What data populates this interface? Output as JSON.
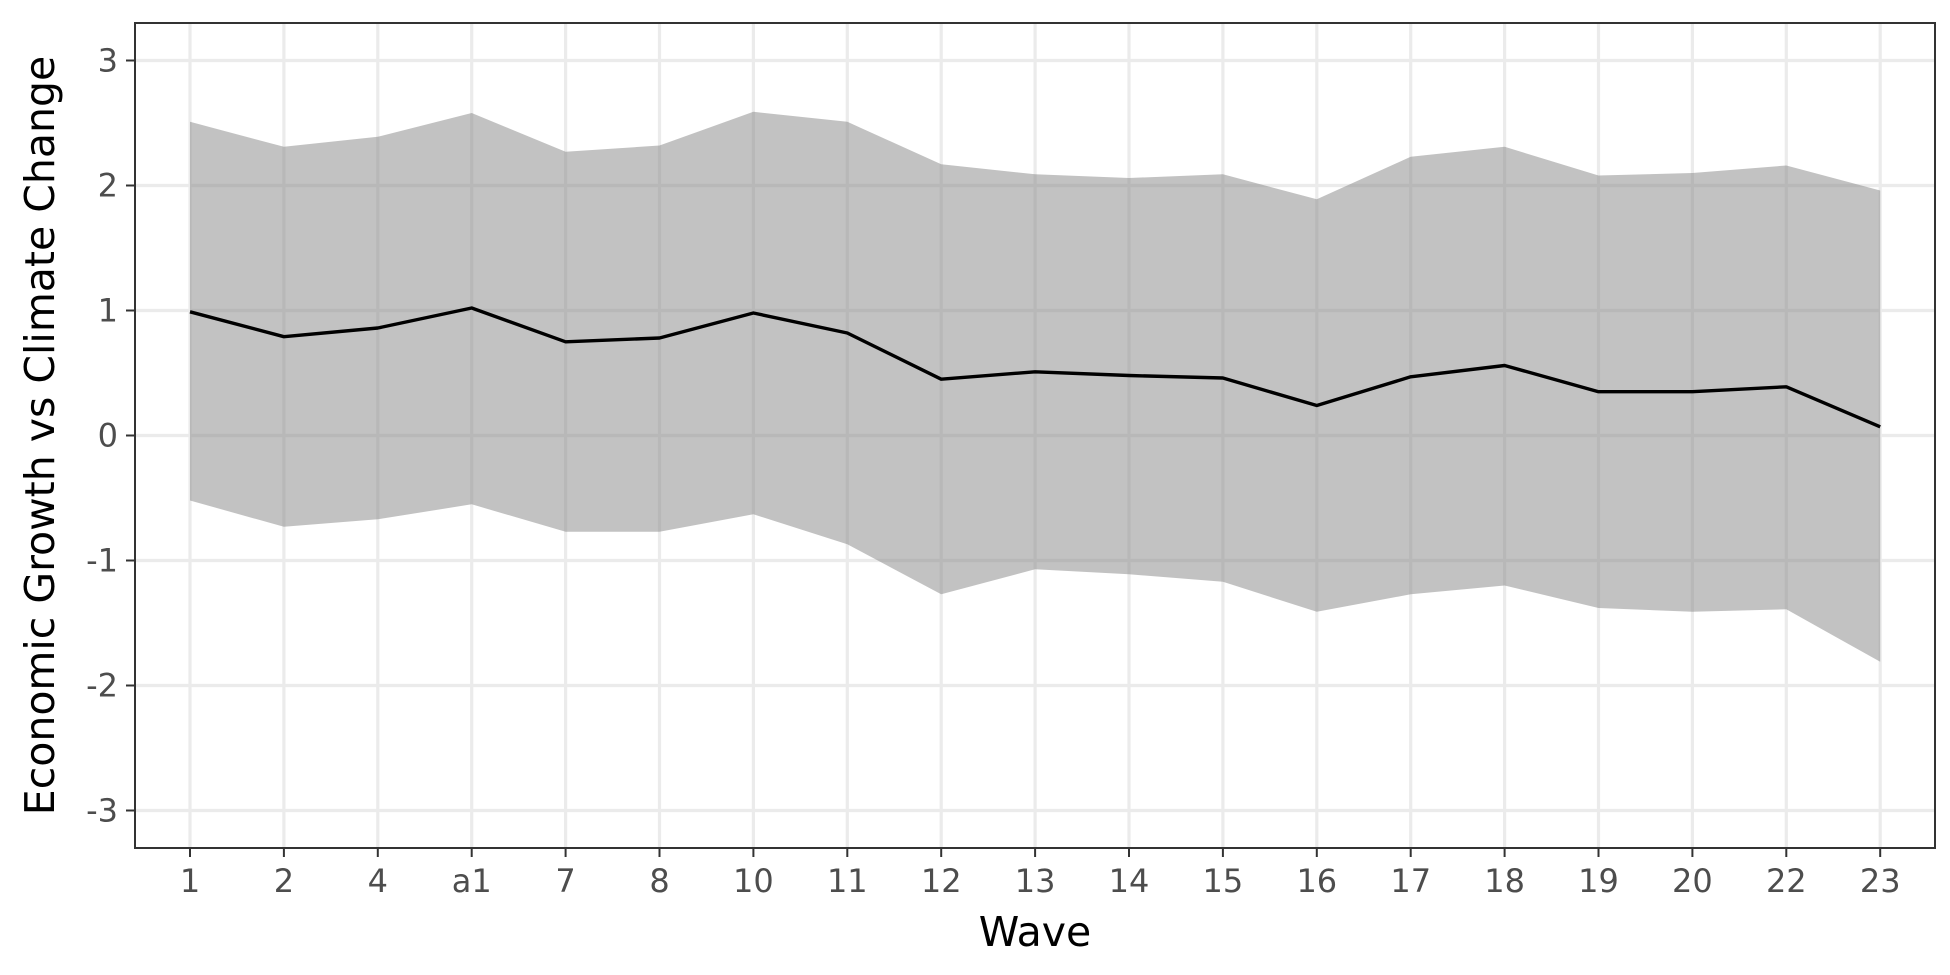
{
  "chart_data": {
    "type": "area",
    "title": "",
    "xlabel": "Wave",
    "ylabel": "Economic Growth vs Climate Change",
    "categories": [
      "1",
      "2",
      "4",
      "a1",
      "7",
      "8",
      "10",
      "11",
      "12",
      "13",
      "14",
      "15",
      "16",
      "17",
      "18",
      "19",
      "20",
      "22",
      "23"
    ],
    "series": [
      {
        "values": [
          0.99,
          0.79,
          0.86,
          1.02,
          0.75,
          0.78,
          0.98,
          0.82,
          0.45,
          0.51,
          0.48,
          0.46,
          0.24,
          0.47,
          0.56,
          0.35,
          0.35,
          0.39,
          0.07
        ],
        "lower": [
          -0.52,
          -0.73,
          -0.67,
          -0.55,
          -0.77,
          -0.77,
          -0.63,
          -0.87,
          -1.27,
          -1.07,
          -1.11,
          -1.17,
          -1.41,
          -1.27,
          -1.2,
          -1.38,
          -1.41,
          -1.39,
          -1.81
        ],
        "upper": [
          2.51,
          2.31,
          2.39,
          2.58,
          2.27,
          2.32,
          2.59,
          2.51,
          2.17,
          2.09,
          2.06,
          2.09,
          1.89,
          2.23,
          2.31,
          2.08,
          2.1,
          2.16,
          1.96
        ]
      }
    ],
    "ylim": [
      -3.3,
      3.3
    ],
    "yticks": [
      -3,
      -2,
      -1,
      0,
      1,
      2,
      3
    ],
    "grid": true,
    "colors": {
      "line": "#000000",
      "ribbon": "#7f7f7f",
      "grid": "#ebebeb",
      "panel_border": "#333333"
    }
  }
}
